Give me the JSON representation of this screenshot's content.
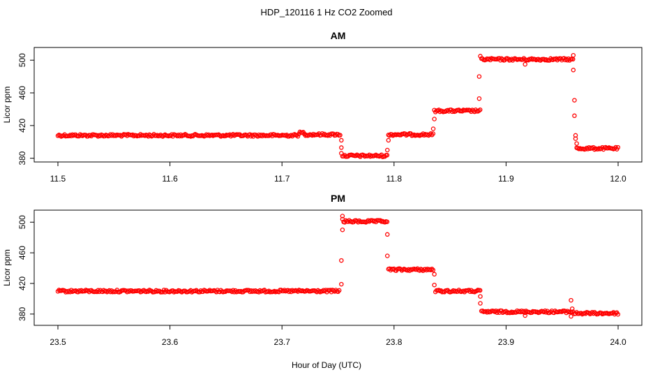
{
  "title": "HDP_120116  1 Hz CO2 Zoomed",
  "xlabel": "Hour of Day (UTC)",
  "colors": {
    "points": "#ff0000",
    "axes": "#000000",
    "background": "#ffffff"
  },
  "chart_data": [
    {
      "type": "scatter",
      "title": "AM",
      "ylabel": "Licor ppm",
      "xlim": [
        11.5,
        12.0
      ],
      "ylim": [
        378,
        513
      ],
      "xticks": [
        "11.5",
        "11.6",
        "11.7",
        "11.8",
        "11.9",
        "12.0"
      ],
      "yticks": [
        "380",
        "420",
        "460",
        "500"
      ],
      "marker": "open-circle",
      "levels": [
        {
          "x_start": 11.5,
          "x_end": 11.715,
          "y": 408
        },
        {
          "x_start": 11.715,
          "x_end": 11.72,
          "y": 411
        },
        {
          "x_start": 11.72,
          "x_end": 11.752,
          "y": 409
        },
        {
          "x_start": 11.754,
          "x_end": 11.794,
          "y": 383
        },
        {
          "x_start": 11.795,
          "x_end": 11.835,
          "y": 409
        },
        {
          "x_start": 11.836,
          "x_end": 11.877,
          "y": 438
        },
        {
          "x_start": 11.878,
          "x_end": 11.96,
          "y": 501
        },
        {
          "x_start": 11.963,
          "x_end": 12.0,
          "y": 392
        }
      ],
      "transition_points": [
        {
          "x": 11.753,
          "y": 402
        },
        {
          "x": 11.753,
          "y": 393
        },
        {
          "x": 11.753,
          "y": 386
        },
        {
          "x": 11.794,
          "y": 390
        },
        {
          "x": 11.795,
          "y": 402
        },
        {
          "x": 11.835,
          "y": 416
        },
        {
          "x": 11.836,
          "y": 428
        },
        {
          "x": 11.876,
          "y": 453
        },
        {
          "x": 11.876,
          "y": 480
        },
        {
          "x": 11.877,
          "y": 505
        },
        {
          "x": 11.917,
          "y": 495
        },
        {
          "x": 11.96,
          "y": 506
        },
        {
          "x": 11.96,
          "y": 488
        },
        {
          "x": 11.961,
          "y": 451
        },
        {
          "x": 11.961,
          "y": 432
        },
        {
          "x": 11.962,
          "y": 408
        },
        {
          "x": 11.962,
          "y": 404
        },
        {
          "x": 11.963,
          "y": 398
        }
      ]
    },
    {
      "type": "scatter",
      "title": "PM",
      "ylabel": "Licor ppm",
      "xlim": [
        23.5,
        24.0
      ],
      "ylim": [
        368,
        513
      ],
      "xticks": [
        "23.5",
        "23.6",
        "23.7",
        "23.8",
        "23.9",
        "24.0"
      ],
      "yticks": [
        "380",
        "420",
        "460",
        "500"
      ],
      "marker": "open-circle",
      "levels": [
        {
          "x_start": 23.5,
          "x_end": 23.752,
          "y": 410
        },
        {
          "x_start": 23.755,
          "x_end": 23.794,
          "y": 501
        },
        {
          "x_start": 23.795,
          "x_end": 23.835,
          "y": 438
        },
        {
          "x_start": 23.837,
          "x_end": 23.877,
          "y": 410
        },
        {
          "x_start": 23.878,
          "x_end": 23.96,
          "y": 383
        },
        {
          "x_start": 23.961,
          "x_end": 24.0,
          "y": 381
        }
      ],
      "transition_points": [
        {
          "x": 23.753,
          "y": 419
        },
        {
          "x": 23.753,
          "y": 450
        },
        {
          "x": 23.754,
          "y": 490
        },
        {
          "x": 23.754,
          "y": 508
        },
        {
          "x": 23.754,
          "y": 504
        },
        {
          "x": 23.794,
          "y": 484
        },
        {
          "x": 23.794,
          "y": 456
        },
        {
          "x": 23.836,
          "y": 432
        },
        {
          "x": 23.836,
          "y": 418
        },
        {
          "x": 23.877,
          "y": 403
        },
        {
          "x": 23.877,
          "y": 394
        },
        {
          "x": 23.917,
          "y": 378
        },
        {
          "x": 23.958,
          "y": 377
        },
        {
          "x": 23.958,
          "y": 398
        },
        {
          "x": 23.959,
          "y": 387
        }
      ]
    }
  ]
}
